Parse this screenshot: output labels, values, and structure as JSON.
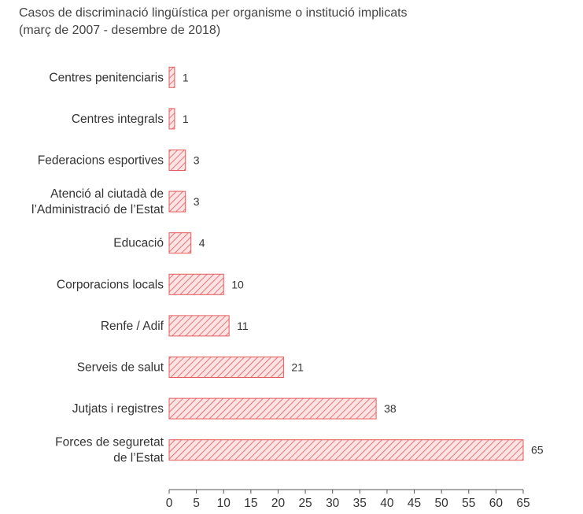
{
  "chart_data": {
    "type": "bar",
    "orientation": "horizontal",
    "title": "Casos de discriminació lingüística per organisme o institució implicats",
    "subtitle": "(març de 2007 - desembre de 2018)",
    "categories": [
      [
        "Centres penitenciaris"
      ],
      [
        "Centres integrals"
      ],
      [
        "Federacions esportives"
      ],
      [
        "Atenció al ciutadà de",
        "l’Administració de l’Estat"
      ],
      [
        "Educació"
      ],
      [
        "Corporacions locals"
      ],
      [
        "Renfe / Adif"
      ],
      [
        "Serveis de salut"
      ],
      [
        "Jutjats i registres"
      ],
      [
        "Forces de seguretat",
        "de l’Estat"
      ]
    ],
    "values": [
      1,
      1,
      3,
      3,
      4,
      10,
      11,
      21,
      38,
      65
    ],
    "xlim": [
      0,
      65
    ],
    "xticks": [
      0,
      5,
      10,
      15,
      20,
      25,
      30,
      35,
      40,
      45,
      50,
      55,
      60,
      65
    ],
    "grid": false,
    "legend": "none",
    "bar_fill": "#fde3e3",
    "bar_hatch_color": "#e35a5a",
    "axis_color": "#555555"
  }
}
